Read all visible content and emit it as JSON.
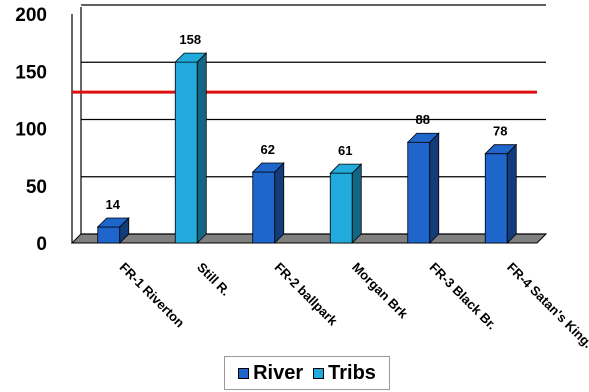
{
  "chart_data": {
    "type": "bar",
    "categories": [
      "FR-1 Riverton",
      "Still R.",
      "FR-2 ballpark",
      "Morgan Brk",
      "FR-3 Black Br.",
      "FR-4 Satan's King."
    ],
    "series": [
      {
        "name": "River",
        "values": [
          14,
          null,
          62,
          null,
          88,
          78
        ]
      },
      {
        "name": "Tribs",
        "values": [
          null,
          158,
          null,
          61,
          null,
          null
        ]
      }
    ],
    "data_labels": [
      "14",
      "158",
      "62",
      "61",
      "88",
      "78"
    ],
    "ylim": [
      0,
      200
    ],
    "yticks": [
      "0",
      "50",
      "100",
      "150",
      "200"
    ],
    "reference_line": {
      "value": 130,
      "color": "#e01010"
    },
    "grid": true,
    "legend_position": "bottom",
    "colors": {
      "River": "#1f66cc",
      "Tribs": "#22aadd",
      "reference": "#e01010"
    }
  },
  "legend": {
    "items": [
      {
        "label": "River",
        "color": "#1f66cc"
      },
      {
        "label": "Tribs",
        "color": "#22aadd"
      }
    ]
  }
}
